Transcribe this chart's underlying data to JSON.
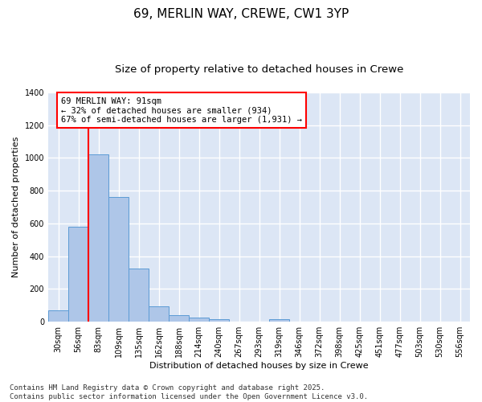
{
  "title1": "69, MERLIN WAY, CREWE, CW1 3YP",
  "title2": "Size of property relative to detached houses in Crewe",
  "xlabel": "Distribution of detached houses by size in Crewe",
  "ylabel": "Number of detached properties",
  "bin_labels": [
    "30sqm",
    "56sqm",
    "83sqm",
    "109sqm",
    "135sqm",
    "162sqm",
    "188sqm",
    "214sqm",
    "240sqm",
    "267sqm",
    "293sqm",
    "319sqm",
    "346sqm",
    "372sqm",
    "398sqm",
    "425sqm",
    "451sqm",
    "477sqm",
    "503sqm",
    "530sqm",
    "556sqm"
  ],
  "bar_values": [
    70,
    580,
    1020,
    760,
    325,
    95,
    38,
    25,
    14,
    0,
    0,
    17,
    0,
    0,
    0,
    0,
    0,
    0,
    0,
    0,
    0
  ],
  "bar_color": "#aec6e8",
  "bar_edge_color": "#5b9bd5",
  "bg_color": "#dce6f5",
  "grid_color": "#ffffff",
  "vline_color": "red",
  "annotation_text": "69 MERLIN WAY: 91sqm\n← 32% of detached houses are smaller (934)\n67% of semi-detached houses are larger (1,931) →",
  "ylim": [
    0,
    1400
  ],
  "yticks": [
    0,
    200,
    400,
    600,
    800,
    1000,
    1200,
    1400
  ],
  "footer": "Contains HM Land Registry data © Crown copyright and database right 2025.\nContains public sector information licensed under the Open Government Licence v3.0.",
  "title1_fontsize": 11,
  "title2_fontsize": 9.5,
  "axis_label_fontsize": 8,
  "tick_fontsize": 7,
  "annotation_fontsize": 7.5,
  "footer_fontsize": 6.5
}
